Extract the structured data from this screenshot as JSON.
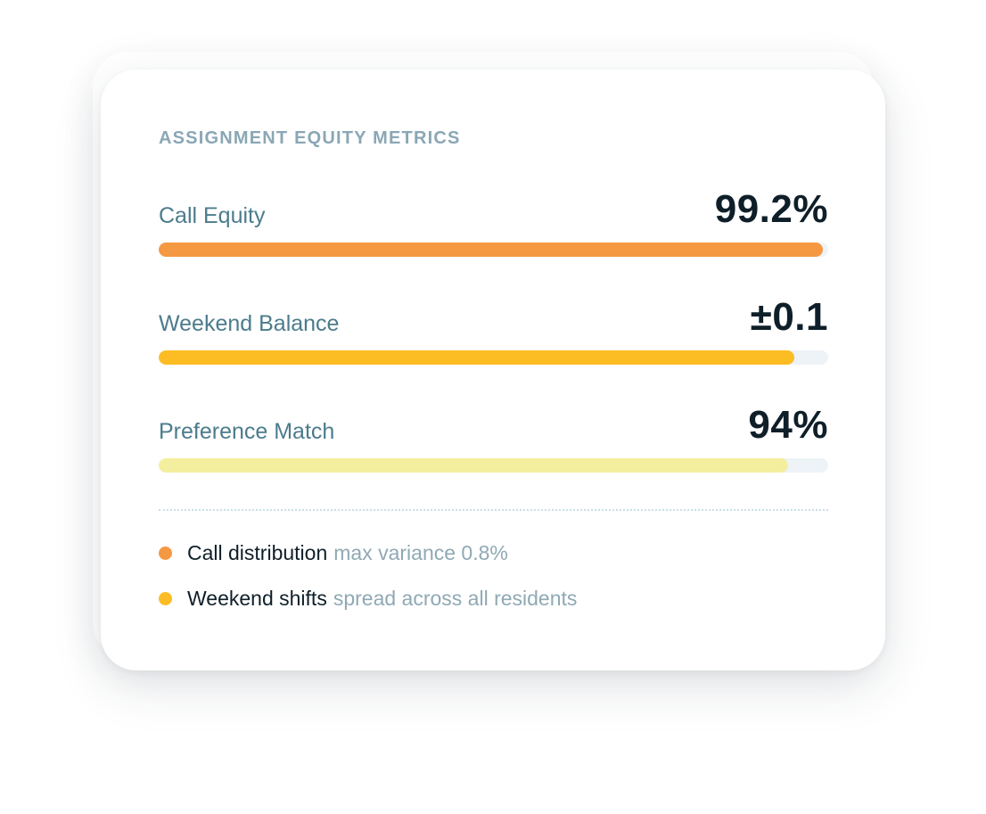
{
  "card": {
    "title": "ASSIGNMENT EQUITY METRICS"
  },
  "metrics": [
    {
      "label": "Call Equity",
      "value": "99.2%",
      "fill_fraction": 0.992,
      "color": "#f59842"
    },
    {
      "label": "Weekend Balance",
      "value": "±0.1",
      "fill_fraction": 0.95,
      "color": "#fcbd24"
    },
    {
      "label": "Preference Match",
      "value": "94%",
      "fill_fraction": 0.94,
      "color": "#f4ee9f"
    }
  ],
  "legend": [
    {
      "strong": "Call distribution",
      "muted": "max variance 0.8%",
      "color": "#f59842"
    },
    {
      "strong": "Weekend shifts",
      "muted": "spread across all residents",
      "color": "#fcbd24"
    }
  ],
  "colors": {
    "track": "#edf3f7",
    "label": "#4b7c8c",
    "value": "#0f1f29",
    "eyebrow": "#8aa7b5"
  }
}
